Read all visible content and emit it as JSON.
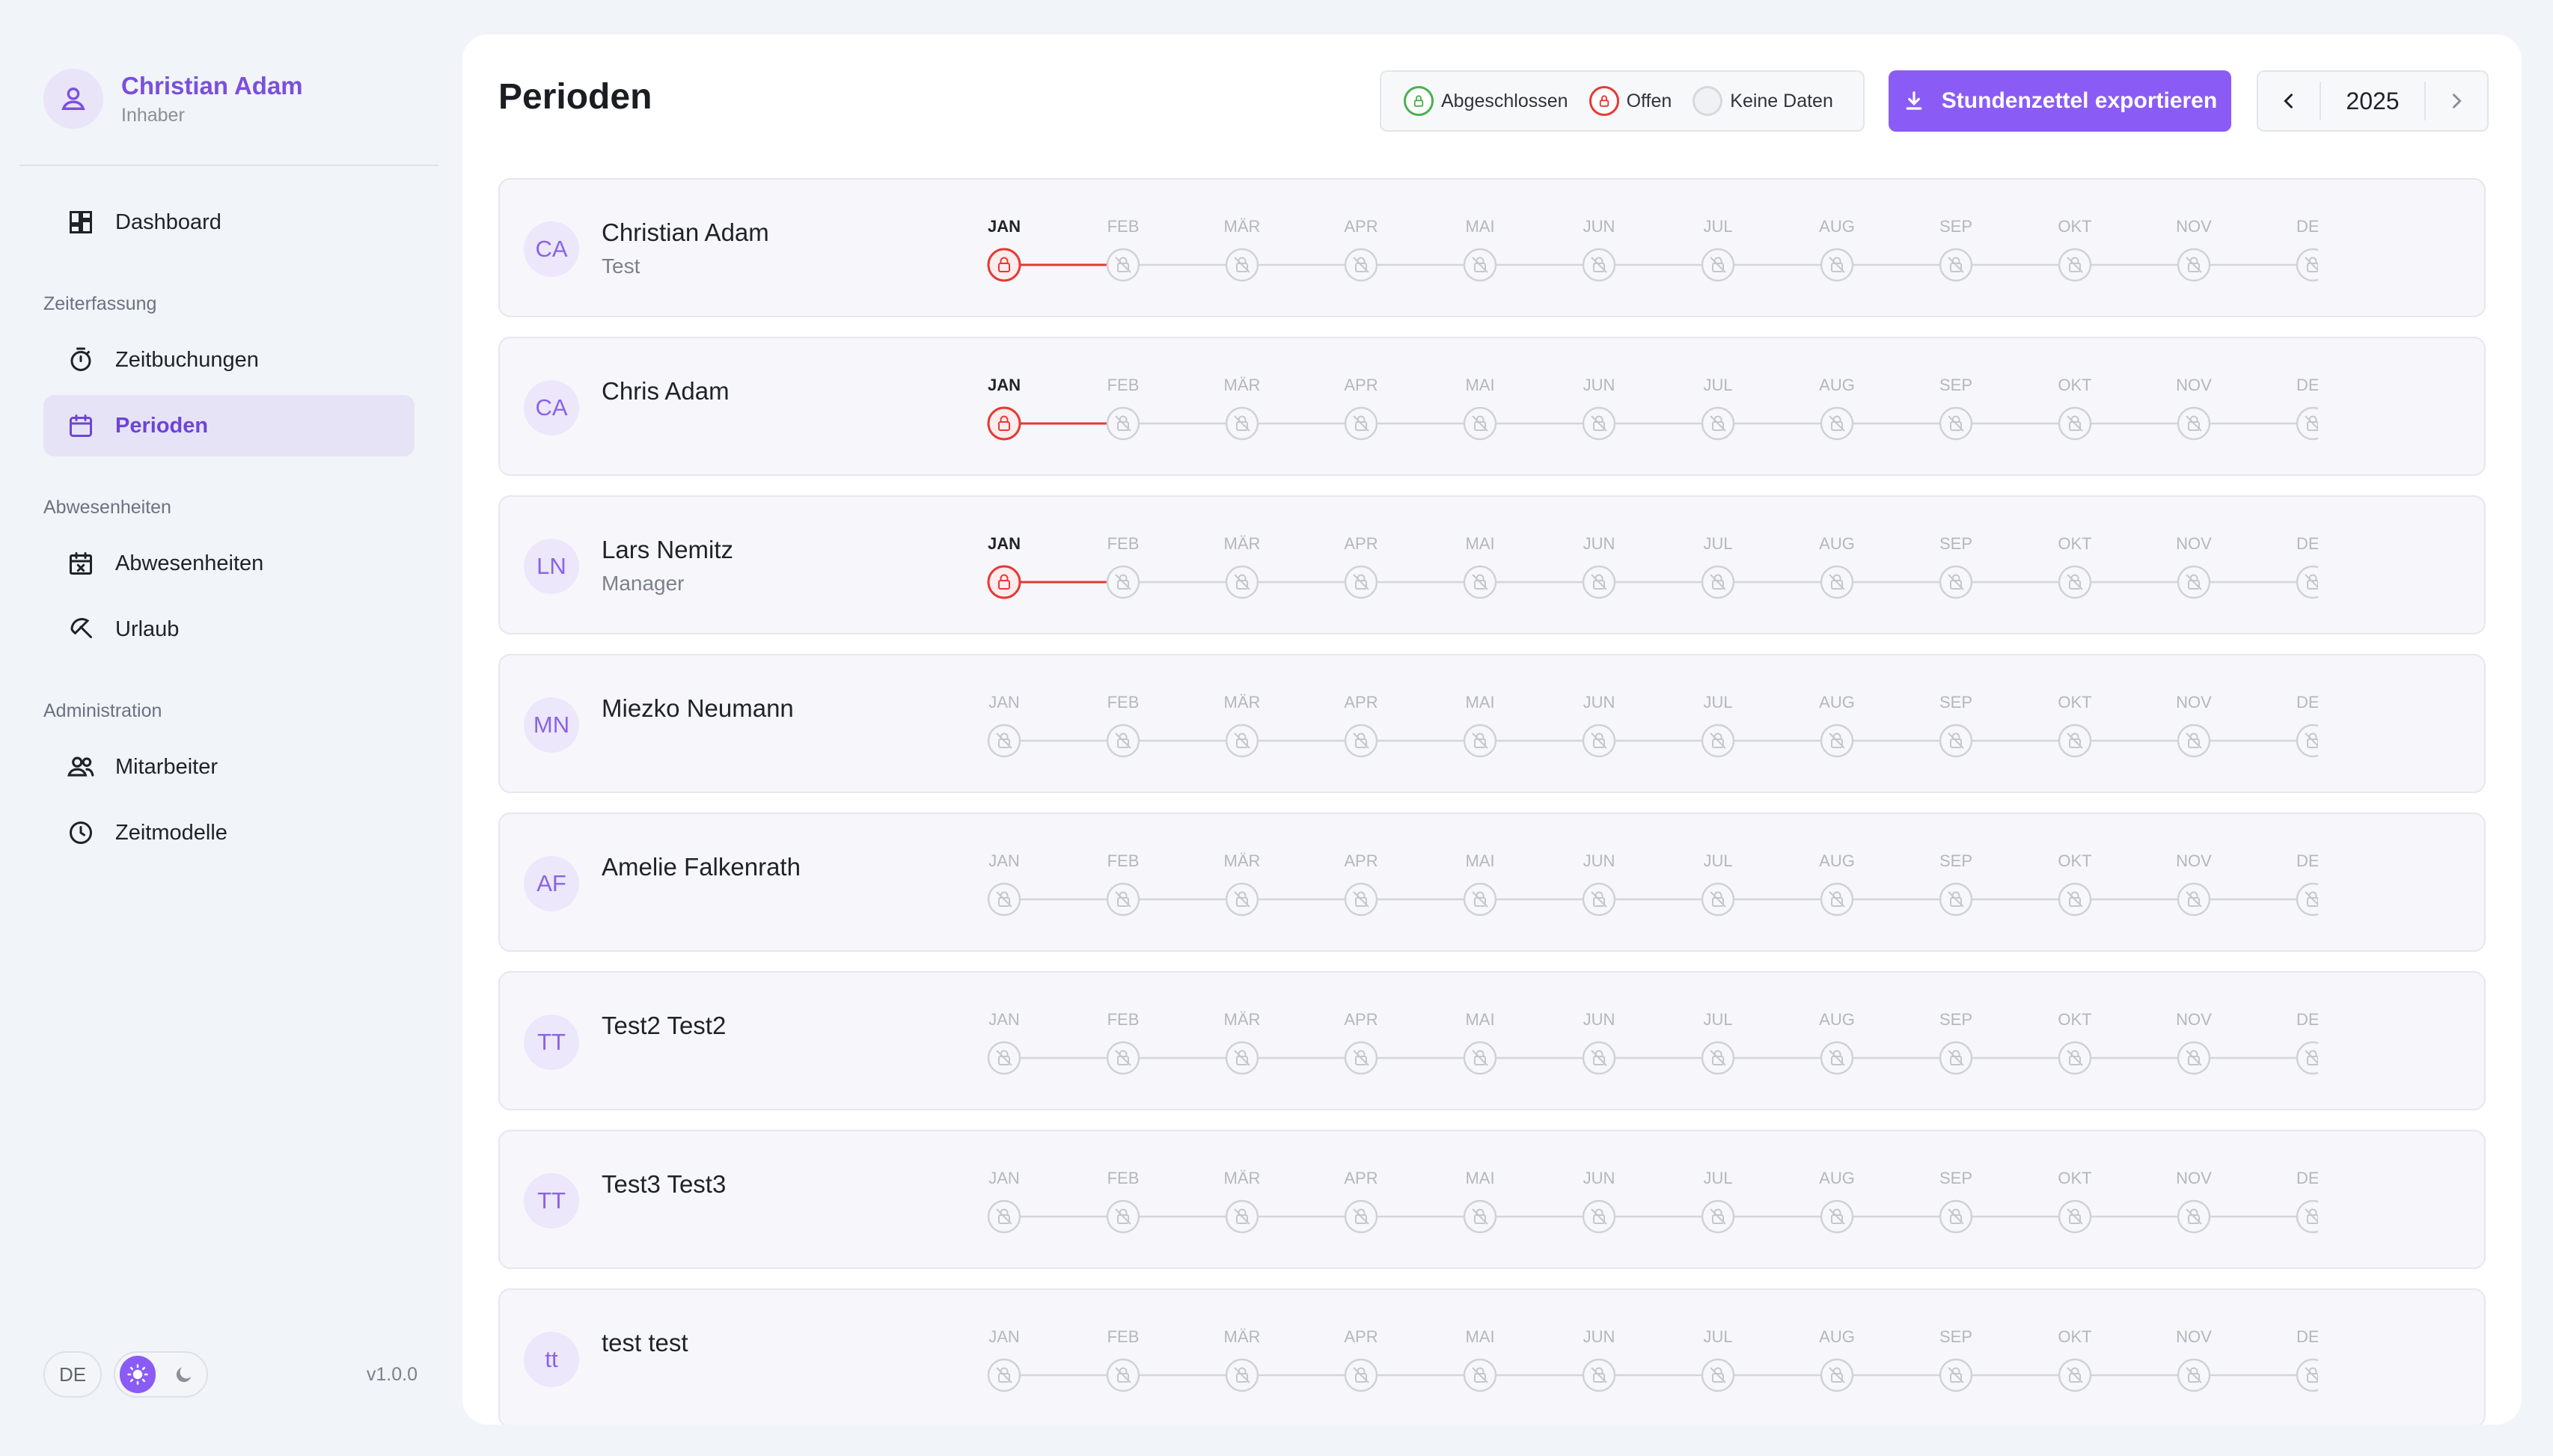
{
  "user": {
    "name": "Christian Adam",
    "role": "Inhaber"
  },
  "nav": {
    "dashboard": "Dashboard",
    "section_time": "Zeiterfassung",
    "bookings": "Zeitbuchungen",
    "periods": "Perioden",
    "section_absence": "Abwesenheiten",
    "absences": "Abwesenheiten",
    "vacation": "Urlaub",
    "section_admin": "Administration",
    "employees": "Mitarbeiter",
    "time_models": "Zeitmodelle"
  },
  "footer": {
    "language": "DE",
    "version": "v1.0.0"
  },
  "page": {
    "title": "Perioden",
    "legend": {
      "closed": "Abgeschlossen",
      "open": "Offen",
      "no_data": "Keine Daten"
    },
    "export_label": "Stundenzettel exportieren",
    "year": "2025"
  },
  "colors": {
    "accent": "#8a5cf5",
    "closed": "#4caf50",
    "open": "#e53935",
    "no_data": "#c9ccd2"
  },
  "months": [
    "JAN",
    "FEB",
    "MÄR",
    "APR",
    "MAI",
    "JUN",
    "JUL",
    "AUG",
    "SEP",
    "OKT",
    "NOV",
    "DEZ"
  ],
  "employees": [
    {
      "initials": "CA",
      "name": "Christian Adam",
      "role": "Test",
      "status": [
        "open",
        "none",
        "none",
        "none",
        "none",
        "none",
        "none",
        "none",
        "none",
        "none",
        "none",
        "none"
      ]
    },
    {
      "initials": "CA",
      "name": "Chris Adam",
      "role": "",
      "status": [
        "open",
        "none",
        "none",
        "none",
        "none",
        "none",
        "none",
        "none",
        "none",
        "none",
        "none",
        "none"
      ]
    },
    {
      "initials": "LN",
      "name": "Lars Nemitz",
      "role": "Manager",
      "status": [
        "open",
        "none",
        "none",
        "none",
        "none",
        "none",
        "none",
        "none",
        "none",
        "none",
        "none",
        "none"
      ]
    },
    {
      "initials": "MN",
      "name": "Miezko Neumann",
      "role": "",
      "status": [
        "none",
        "none",
        "none",
        "none",
        "none",
        "none",
        "none",
        "none",
        "none",
        "none",
        "none",
        "none"
      ]
    },
    {
      "initials": "AF",
      "name": "Amelie Falkenrath",
      "role": "",
      "status": [
        "none",
        "none",
        "none",
        "none",
        "none",
        "none",
        "none",
        "none",
        "none",
        "none",
        "none",
        "none"
      ]
    },
    {
      "initials": "TT",
      "name": "Test2 Test2",
      "role": "",
      "status": [
        "none",
        "none",
        "none",
        "none",
        "none",
        "none",
        "none",
        "none",
        "none",
        "none",
        "none",
        "none"
      ]
    },
    {
      "initials": "TT",
      "name": "Test3 Test3",
      "role": "",
      "status": [
        "none",
        "none",
        "none",
        "none",
        "none",
        "none",
        "none",
        "none",
        "none",
        "none",
        "none",
        "none"
      ]
    },
    {
      "initials": "tt",
      "name": "test test",
      "role": "",
      "status": [
        "none",
        "none",
        "none",
        "none",
        "none",
        "none",
        "none",
        "none",
        "none",
        "none",
        "none",
        "none"
      ]
    }
  ]
}
